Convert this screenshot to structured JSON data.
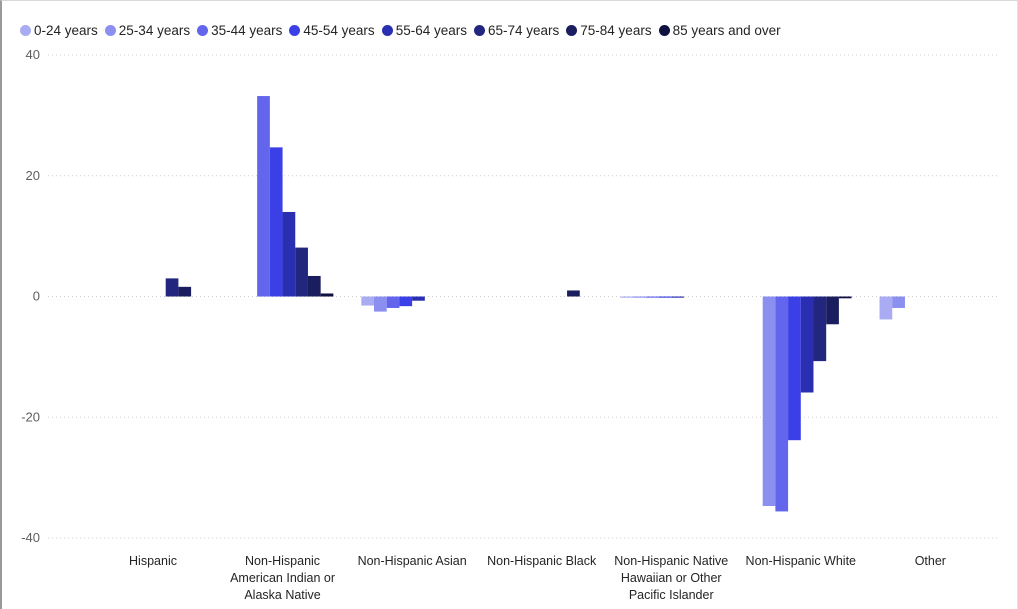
{
  "chart_data": {
    "type": "bar",
    "title": "",
    "xlabel": "",
    "ylabel": "",
    "ylim": [
      -40,
      40
    ],
    "y_ticks": [
      "40",
      "20",
      "0",
      "-20",
      "-40"
    ],
    "grid": "horizontal dotted",
    "legend_position": "top-left",
    "categories": [
      "Hispanic",
      "Non-Hispanic American Indian or Alaska Native",
      "Non-Hispanic Asian",
      "Non-Hispanic Black",
      "Non-Hispanic Native Hawaiian or Other Pacific Islander",
      "Non-Hispanic White",
      "Other"
    ],
    "category_label_lines": [
      [
        "Hispanic"
      ],
      [
        "Non-Hispanic",
        "American Indian or",
        "Alaska Native"
      ],
      [
        "Non-Hispanic Asian"
      ],
      [
        "Non-Hispanic Black"
      ],
      [
        "Non-Hispanic Native",
        "Hawaiian or Other",
        "Pacific Islander"
      ],
      [
        "Non-Hispanic White"
      ],
      [
        "Other"
      ]
    ],
    "series": [
      {
        "name": "0-24 years",
        "color": "#a9acf3",
        "values": [
          0,
          0,
          -1.5,
          0,
          -0.1,
          0,
          -3.8
        ]
      },
      {
        "name": "25-34 years",
        "color": "#8b8ff0",
        "values": [
          0,
          0,
          -2.5,
          0,
          -0.1,
          -34.7,
          -1.9
        ]
      },
      {
        "name": "35-44 years",
        "color": "#6366ec",
        "values": [
          0,
          33.2,
          -1.9,
          0,
          -0.1,
          -35.6,
          0
        ]
      },
      {
        "name": "45-54 years",
        "color": "#3b3fe6",
        "values": [
          0,
          24.7,
          -1.6,
          0,
          -0.1,
          -23.8,
          0
        ]
      },
      {
        "name": "55-64 years",
        "color": "#2a2fb2",
        "values": [
          0,
          14.0,
          -0.7,
          0,
          -0.1,
          -15.9,
          0
        ]
      },
      {
        "name": "65-74 years",
        "color": "#22267f",
        "values": [
          3.0,
          8.1,
          0,
          0,
          0,
          -10.7,
          0
        ]
      },
      {
        "name": "75-84 years",
        "color": "#1a1d5e",
        "values": [
          1.6,
          3.4,
          0,
          1.0,
          0,
          -4.6,
          0
        ]
      },
      {
        "name": "85 years and over",
        "color": "#0f1140",
        "values": [
          0,
          0.5,
          0,
          0,
          0,
          -0.3,
          0
        ]
      }
    ]
  }
}
